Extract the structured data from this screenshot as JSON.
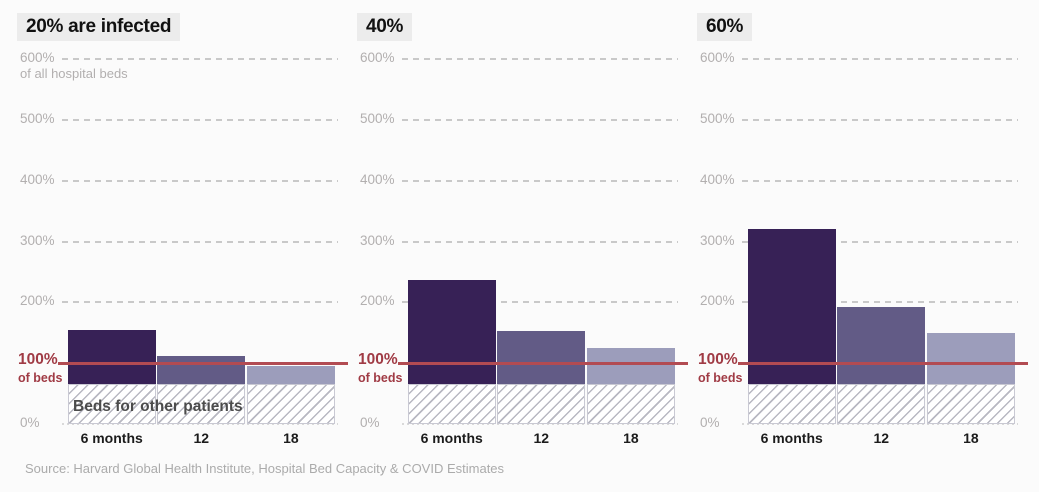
{
  "source": "Source: Harvard Global Health Institute, Hospital Bed Capacity & COVID Estimates",
  "chart_data": {
    "type": "bar",
    "categories": [
      "6 months",
      "12",
      "18"
    ],
    "y_ticks": [
      0,
      100,
      200,
      300,
      400,
      500,
      600
    ],
    "ylim": [
      0,
      600
    ],
    "y_unit": "%",
    "y_top_note": "of all hospital beds",
    "grid": true,
    "legend_position": "none",
    "panels": [
      {
        "title": "20% are infected",
        "values": [
          155,
          112,
          95
        ]
      },
      {
        "title": "40%",
        "values": [
          237,
          153,
          125
        ]
      },
      {
        "title": "60%",
        "values": [
          320,
          193,
          150
        ]
      }
    ],
    "capacity_line": {
      "value": 100,
      "label": "100%",
      "sublabel": "of beds"
    },
    "base_occupancy": {
      "value": 65,
      "label": "Beds for other patients"
    },
    "bar_colors": [
      "#372156",
      "#625b86",
      "#9c9dbb"
    ]
  },
  "colors": {
    "background": "#fbfbfb",
    "title_chip_bg": "#ececec",
    "title_text": "#111111",
    "grid": "#c9c9c9",
    "axis_label": "#b2afaf",
    "capacity_line": "#b24b52",
    "capacity_label": "#a03b45",
    "hatch_line": "#b8b8c2",
    "hatch_border": "#c9c9d3",
    "x_label": "#1c1c1c",
    "annotation": "#4c4c4c",
    "source": "#ababab"
  }
}
